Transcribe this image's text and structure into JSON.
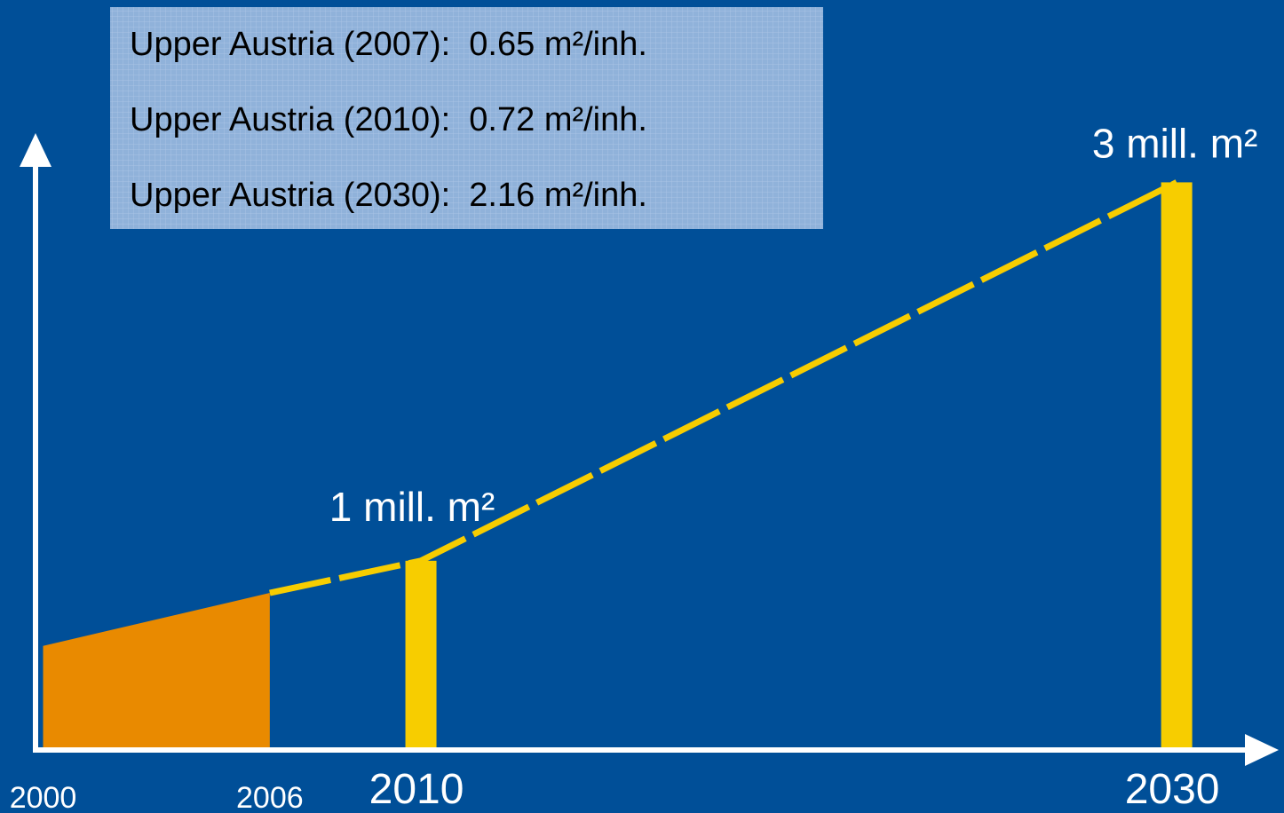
{
  "chart_data": {
    "type": "line",
    "notes": [
      "Upper Austria (2007):  0.65 m²/inh.",
      "Upper Austria (2010):  0.72 m²/inh.",
      "Upper Austria (2030):  2.16 m²/inh."
    ],
    "area": {
      "x": [
        2000,
        2006
      ],
      "values": [
        0.55,
        0.83
      ],
      "color": "#e98a00"
    },
    "line": {
      "x": [
        2006,
        2010,
        2030
      ],
      "values": [
        0.83,
        1,
        3
      ],
      "color": "#f7cd00"
    },
    "bars": {
      "x": [
        2010,
        2030
      ],
      "values": [
        1,
        3
      ],
      "value_labels": [
        "1 mill. m²",
        "3 mill. m²"
      ],
      "color": "#f7cd00"
    },
    "xticks": [
      2000,
      2006,
      2010,
      2030
    ],
    "xlim": [
      1999.8,
      2032.7
    ],
    "ylim": [
      0,
      3.26
    ],
    "background": "#004f98",
    "axis_color": "#ffffff"
  }
}
